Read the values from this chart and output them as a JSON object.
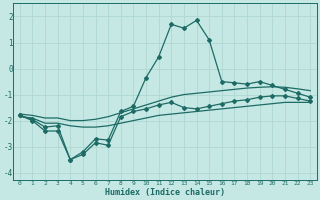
{
  "xlabel": "Humidex (Indice chaleur)",
  "xlim": [
    -0.5,
    23.5
  ],
  "ylim": [
    -4.3,
    2.5
  ],
  "bg_color": "#c5e8e5",
  "line_color": "#1e6b65",
  "grid_color": "#afd8d3",
  "xticks": [
    0,
    1,
    2,
    3,
    4,
    5,
    6,
    7,
    8,
    9,
    10,
    11,
    12,
    13,
    14,
    15,
    16,
    17,
    18,
    19,
    20,
    21,
    22,
    23
  ],
  "yticks": [
    -4,
    -3,
    -2,
    -1,
    0,
    1,
    2
  ],
  "lines": [
    {
      "x": [
        0,
        1,
        2,
        3,
        4,
        5,
        6,
        7,
        8,
        9,
        10,
        11,
        12,
        13,
        14,
        15,
        16,
        17,
        18,
        19,
        20,
        21,
        22,
        23
      ],
      "y": [
        -1.8,
        -2.0,
        -2.4,
        -2.4,
        -3.5,
        -3.3,
        -2.85,
        -2.95,
        -1.85,
        -1.65,
        -1.55,
        -1.4,
        -1.3,
        -1.5,
        -1.55,
        -1.45,
        -1.35,
        -1.25,
        -1.2,
        -1.1,
        -1.05,
        -1.05,
        -1.15,
        -1.25
      ],
      "marker": "D",
      "ms": 2.0,
      "lw": 0.9
    },
    {
      "x": [
        0,
        1,
        2,
        3,
        4,
        5,
        6,
        7,
        8,
        9,
        10,
        11,
        12,
        13,
        14,
        15,
        16,
        17,
        18,
        19,
        20,
        21,
        22,
        23
      ],
      "y": [
        -1.85,
        -1.9,
        -2.1,
        -2.1,
        -2.2,
        -2.25,
        -2.25,
        -2.2,
        -2.1,
        -2.0,
        -1.9,
        -1.8,
        -1.75,
        -1.7,
        -1.65,
        -1.6,
        -1.55,
        -1.5,
        -1.45,
        -1.4,
        -1.35,
        -1.3,
        -1.3,
        -1.3
      ],
      "marker": null,
      "ms": 0,
      "lw": 0.9
    },
    {
      "x": [
        0,
        1,
        2,
        3,
        4,
        5,
        6,
        7,
        8,
        9,
        10,
        11,
        12,
        13,
        14,
        15,
        16,
        17,
        18,
        19,
        20,
        21,
        22,
        23
      ],
      "y": [
        -1.75,
        -1.8,
        -1.9,
        -1.9,
        -2.0,
        -2.0,
        -1.95,
        -1.85,
        -1.7,
        -1.55,
        -1.4,
        -1.25,
        -1.1,
        -1.0,
        -0.95,
        -0.9,
        -0.85,
        -0.8,
        -0.75,
        -0.72,
        -0.7,
        -0.72,
        -0.78,
        -0.85
      ],
      "marker": null,
      "ms": 0,
      "lw": 0.9
    },
    {
      "x": [
        0,
        1,
        2,
        3,
        4,
        5,
        6,
        7,
        8,
        9,
        10,
        11,
        12,
        13,
        14,
        15,
        16,
        17,
        18,
        19,
        20,
        21,
        22,
        23
      ],
      "y": [
        -1.8,
        -1.95,
        -2.25,
        -2.2,
        -3.5,
        -3.2,
        -2.7,
        -2.75,
        -1.65,
        -1.45,
        -0.35,
        0.45,
        1.7,
        1.55,
        1.85,
        1.1,
        -0.5,
        -0.55,
        -0.6,
        -0.5,
        -0.65,
        -0.8,
        -0.95,
        -1.1
      ],
      "marker": "D",
      "ms": 2.0,
      "lw": 0.9
    }
  ]
}
